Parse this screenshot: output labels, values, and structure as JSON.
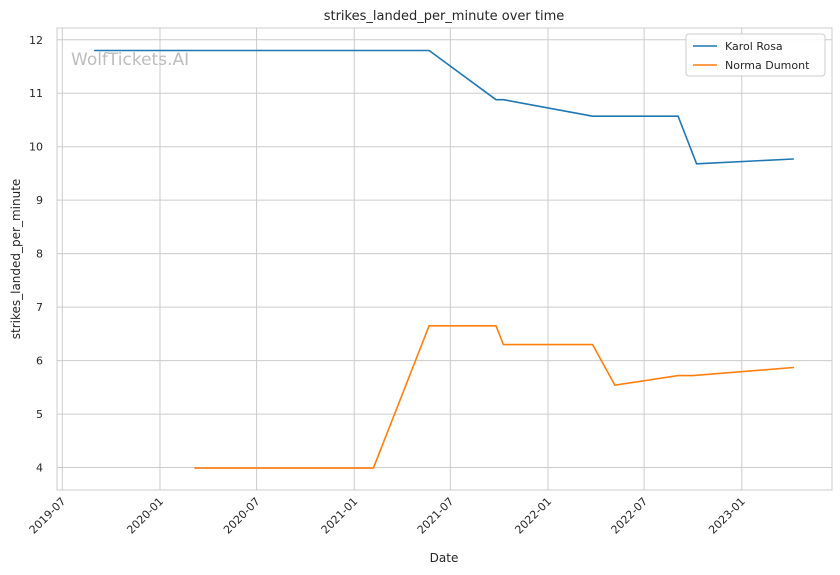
{
  "chart_data": {
    "type": "line",
    "title": "strikes_landed_per_minute over time",
    "xlabel": "Date",
    "ylabel": "strikes_landed_per_minute",
    "watermark": "WolfTickets.AI",
    "xlim": [
      "2019-06-21",
      "2023-06-20"
    ],
    "ylim": [
      3.58,
      12.22
    ],
    "x_ticks": [
      "2019-07-01",
      "2020-01-01",
      "2020-07-01",
      "2021-01-01",
      "2021-07-01",
      "2022-01-01",
      "2022-07-01",
      "2023-01-01"
    ],
    "x_tick_labels": [
      "2019-07",
      "2020-01",
      "2020-07",
      "2021-01",
      "2021-07",
      "2022-01",
      "2022-07",
      "2023-01"
    ],
    "y_ticks": [
      4,
      5,
      6,
      7,
      8,
      9,
      10,
      11,
      12
    ],
    "y_tick_labels": [
      "4",
      "5",
      "6",
      "7",
      "8",
      "9",
      "10",
      "11",
      "12"
    ],
    "grid": true,
    "legend_position": "top-right",
    "series": [
      {
        "name": "Karol Rosa",
        "color": "#1f77b4",
        "points": [
          {
            "x": "2019-08-31",
            "y": 11.8
          },
          {
            "x": "2021-05-22",
            "y": 11.8
          },
          {
            "x": "2021-09-25",
            "y": 10.88
          },
          {
            "x": "2021-10-09",
            "y": 10.88
          },
          {
            "x": "2022-03-26",
            "y": 10.57
          },
          {
            "x": "2022-09-03",
            "y": 10.57
          },
          {
            "x": "2022-10-08",
            "y": 9.68
          },
          {
            "x": "2023-04-08",
            "y": 9.77
          }
        ]
      },
      {
        "name": "Norma Dumont",
        "color": "#ff7f0e",
        "points": [
          {
            "x": "2020-03-07",
            "y": 3.99
          },
          {
            "x": "2021-02-06",
            "y": 3.99
          },
          {
            "x": "2021-05-22",
            "y": 6.65
          },
          {
            "x": "2021-09-25",
            "y": 6.65
          },
          {
            "x": "2021-10-09",
            "y": 6.3
          },
          {
            "x": "2022-03-26",
            "y": 6.3
          },
          {
            "x": "2022-05-07",
            "y": 5.54
          },
          {
            "x": "2022-09-03",
            "y": 5.72
          },
          {
            "x": "2022-10-01",
            "y": 5.72
          },
          {
            "x": "2023-04-08",
            "y": 5.87
          }
        ]
      }
    ]
  }
}
